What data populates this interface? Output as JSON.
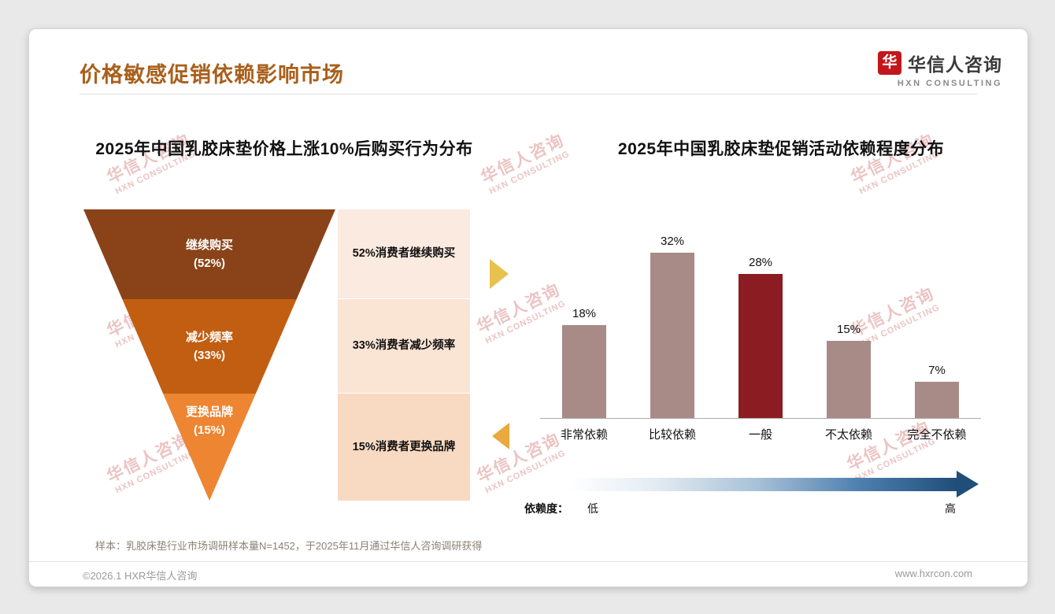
{
  "page": {
    "title": "价格敏感促销依赖影响市场",
    "footnote": "样本：乳胶床垫行业市场调研样本量N=1452，于2025年11月通过华信人咨询调研获得",
    "footer_left": "©2026.1 HXR华信人咨询",
    "footer_right": "www.hxrcon.com",
    "accent_color": "#A9601C"
  },
  "logo": {
    "name": "华信人咨询",
    "subtitle": "HXN CONSULTING",
    "icon_char": "华",
    "icon_color": "#C3161C"
  },
  "watermark": {
    "line1": "华信人咨询",
    "line2": "HXN CONSULTING"
  },
  "funnel_chart": {
    "title": "2025年中国乳胶床垫价格上涨10%后购买行为分布",
    "segments": [
      {
        "label": "继续购买",
        "pct": "(52%)",
        "color": "#8A4318",
        "side_label": "52%消费者继续购买",
        "side_bg": "#FBEAE0"
      },
      {
        "label": "减少频率",
        "pct": "(33%)",
        "color": "#C25E12",
        "side_label": "33%消费者减少频率",
        "side_bg": "#FAE4D4"
      },
      {
        "label": "更换品牌",
        "pct": "(15%)",
        "color": "#ED8532",
        "side_label": "15%消费者更换品牌",
        "side_bg": "#F8DAC2"
      }
    ]
  },
  "bar_chart": {
    "title": "2025年中国乳胶床垫促销活动依赖程度分布",
    "bars": [
      {
        "category": "非常依赖",
        "value": 18,
        "label": "18%"
      },
      {
        "category": "比较依赖",
        "value": 32,
        "label": "32%"
      },
      {
        "category": "一般",
        "value": 28,
        "label": "28%"
      },
      {
        "category": "不太依赖",
        "value": 15,
        "label": "15%"
      },
      {
        "category": "完全不依赖",
        "value": 7,
        "label": "7%"
      }
    ],
    "bar_color": "#A88B86",
    "highlight_index": 2,
    "highlight_color": "#8B1D22",
    "legend": {
      "label": "依赖度：",
      "low": "低",
      "high": "高"
    }
  },
  "chart_data": [
    {
      "type": "funnel",
      "title": "2025年中国乳胶床垫价格上涨10%后购买行为分布",
      "categories": [
        "继续购买",
        "减少频率",
        "更换品牌"
      ],
      "values": [
        52,
        33,
        15
      ],
      "unit": "%",
      "annotations": [
        "52%消费者继续购买",
        "33%消费者减少频率",
        "15%消费者更换品牌"
      ]
    },
    {
      "type": "bar",
      "title": "2025年中国乳胶床垫促销活动依赖程度分布",
      "categories": [
        "非常依赖",
        "比较依赖",
        "一般",
        "不太依赖",
        "完全不依赖"
      ],
      "values": [
        18,
        32,
        28,
        15,
        7
      ],
      "unit": "%",
      "ylim": [
        0,
        35
      ],
      "grid": false,
      "highlight": {
        "category": "一般",
        "color": "#8B1D22"
      },
      "axis_note": {
        "label": "依赖度：",
        "low": "低",
        "high": "高"
      }
    }
  ]
}
